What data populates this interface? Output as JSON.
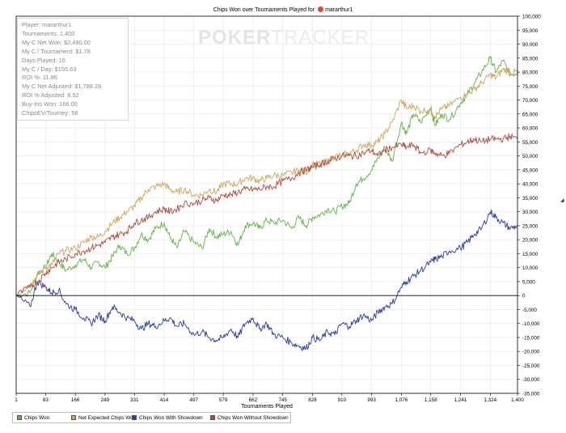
{
  "title": {
    "prefix": "Chips Won over Tournaments Played for",
    "player": "mararthur1"
  },
  "watermark": {
    "left": "POKER",
    "right": "TRACKER"
  },
  "stats": [
    "Player: mararthur1",
    "Tournaments: 1,400",
    "My C Net Won: $2,490.00",
    "My C / Tournament: $1.78",
    "Days Played: 16",
    "My C / Day: $155.63",
    "ROI %: 11.86",
    "My C Net Adjusted: $1,788.26",
    "ROI % Adjusted: 8.52",
    "Buy-Ins Won: 166.00",
    "ChipsEV/Tourney: 58"
  ],
  "colors": {
    "chips_won": "#5fb548",
    "net_expected": "#cda65c",
    "with_showdown": "#2a3aa8",
    "without_showdown": "#b04a3c",
    "grid": "#e6e6e6",
    "axis": "#000000"
  },
  "chart_data": {
    "type": "line",
    "title": "Chips Won over Tournaments Played for mararthur1",
    "xlabel": "Tournaments Played",
    "ylabel": "",
    "xlim": [
      1,
      1400
    ],
    "ylim": [
      -35000,
      100000
    ],
    "y_axis_side": "right",
    "grid": true,
    "legend_position": "bottom-left",
    "x_ticks": [
      1,
      83,
      166,
      249,
      331,
      414,
      497,
      579,
      662,
      745,
      828,
      910,
      993,
      1076,
      1158,
      1241,
      1324,
      1400
    ],
    "x_tick_labels": [
      "1",
      "83",
      "166",
      "249",
      "331",
      "414",
      "497",
      "579",
      "662",
      "745",
      "828",
      "910",
      "993",
      "1,076",
      "1,158",
      "1,241",
      "1,324",
      "1,400"
    ],
    "y_ticks": [
      -35000,
      -30000,
      -25000,
      -20000,
      -15000,
      -10000,
      -5000,
      0,
      5000,
      10000,
      15000,
      20000,
      25000,
      30000,
      35000,
      40000,
      45000,
      50000,
      55000,
      60000,
      65000,
      70000,
      75000,
      80000,
      85000,
      90000,
      95000,
      100000
    ],
    "y_tick_labels": [
      "-35,000",
      "-30,000",
      "-25,000",
      "-20,000",
      "-15,000",
      "-10,000",
      "-5,000",
      "0",
      "5,000",
      "10,000",
      "15,000",
      "20,000",
      "25,000",
      "30,000",
      "35,000",
      "40,000",
      "45,000",
      "50,000",
      "55,000",
      "60,000",
      "65,000",
      "70,000",
      "75,000",
      "80,000",
      "85,000",
      "90,000",
      "95,000",
      "100,000"
    ],
    "series": [
      {
        "name": "Chips Won",
        "color_key": "chips_won",
        "x": [
          1,
          40,
          60,
          83,
          100,
          120,
          140,
          166,
          190,
          210,
          230,
          249,
          270,
          290,
          310,
          331,
          350,
          370,
          390,
          414,
          430,
          450,
          470,
          497,
          520,
          540,
          560,
          579,
          600,
          620,
          640,
          662,
          680,
          700,
          720,
          745,
          770,
          790,
          810,
          828,
          850,
          870,
          890,
          910,
          930,
          950,
          970,
          993,
          1010,
          1030,
          1050,
          1076,
          1090,
          1110,
          1130,
          1158,
          1170,
          1190,
          1210,
          1241,
          1260,
          1280,
          1300,
          1324,
          1340,
          1360,
          1380,
          1400
        ],
        "y": [
          0,
          1000,
          8000,
          10000,
          15000,
          12000,
          9000,
          11000,
          13000,
          10000,
          12000,
          10000,
          14000,
          18000,
          15000,
          17000,
          22000,
          20000,
          24000,
          26000,
          21000,
          17000,
          23000,
          19000,
          17000,
          24000,
          21000,
          22000,
          23000,
          18000,
          25000,
          26000,
          24000,
          27000,
          26000,
          27000,
          24000,
          28000,
          25000,
          28000,
          29000,
          31000,
          30000,
          32000,
          33000,
          40000,
          42000,
          45000,
          49000,
          53000,
          48000,
          62000,
          58000,
          65000,
          62000,
          67000,
          61000,
          65000,
          63000,
          69000,
          72000,
          76000,
          80000,
          85000,
          80000,
          84000,
          79000,
          80000
        ]
      },
      {
        "name": "Net Expected Chips Won",
        "color_key": "net_expected",
        "x": [
          1,
          40,
          60,
          83,
          100,
          120,
          140,
          166,
          190,
          210,
          230,
          249,
          270,
          290,
          310,
          331,
          350,
          370,
          390,
          414,
          430,
          450,
          470,
          497,
          520,
          540,
          560,
          579,
          600,
          620,
          640,
          662,
          680,
          700,
          720,
          745,
          770,
          790,
          810,
          828,
          850,
          870,
          890,
          910,
          930,
          950,
          970,
          993,
          1010,
          1030,
          1050,
          1076,
          1090,
          1110,
          1130,
          1158,
          1170,
          1190,
          1210,
          1241,
          1260,
          1280,
          1300,
          1324,
          1340,
          1360,
          1380,
          1400
        ],
        "y": [
          0,
          4000,
          7000,
          10000,
          11000,
          15000,
          16000,
          17000,
          19000,
          21000,
          21000,
          23000,
          26000,
          28000,
          30000,
          32000,
          35000,
          38000,
          39000,
          40000,
          38000,
          37000,
          38000,
          36000,
          36000,
          38000,
          37000,
          40000,
          40000,
          40000,
          42000,
          42000,
          41000,
          42000,
          43000,
          43000,
          44000,
          45000,
          44000,
          47000,
          47000,
          48000,
          50000,
          50000,
          51000,
          52000,
          54000,
          54000,
          55000,
          58000,
          62000,
          70000,
          67000,
          68000,
          66000,
          67000,
          64000,
          67000,
          68000,
          71000,
          72000,
          74000,
          76000,
          79000,
          78000,
          81000,
          80000,
          80000
        ]
      },
      {
        "name": "Chips Won With Showdown",
        "color_key": "with_showdown",
        "x": [
          1,
          40,
          60,
          83,
          100,
          120,
          140,
          166,
          190,
          210,
          230,
          249,
          270,
          290,
          310,
          331,
          350,
          370,
          390,
          414,
          430,
          450,
          470,
          497,
          520,
          540,
          560,
          579,
          600,
          620,
          640,
          662,
          680,
          700,
          720,
          745,
          770,
          790,
          810,
          828,
          850,
          870,
          890,
          910,
          930,
          950,
          970,
          993,
          1010,
          1030,
          1050,
          1076,
          1090,
          1110,
          1130,
          1158,
          1170,
          1190,
          1210,
          1241,
          1260,
          1280,
          1300,
          1324,
          1340,
          1360,
          1380,
          1400
        ],
        "y": [
          0,
          -4000,
          5000,
          3000,
          1000,
          2000,
          -3000,
          -5000,
          -8000,
          -10000,
          -7000,
          -9000,
          -4000,
          -6000,
          -8000,
          -9000,
          -12000,
          -10000,
          -11000,
          -9000,
          -8000,
          -11000,
          -10000,
          -14000,
          -13000,
          -15000,
          -16000,
          -15000,
          -12000,
          -15000,
          -10000,
          -8000,
          -12000,
          -10000,
          -14000,
          -15000,
          -17000,
          -18000,
          -19000,
          -15000,
          -16000,
          -13000,
          -14000,
          -10000,
          -11000,
          -9000,
          -7000,
          -9000,
          -6000,
          -4000,
          -3000,
          3000,
          5000,
          7000,
          9000,
          12000,
          13000,
          14000,
          16000,
          17000,
          19000,
          22000,
          24000,
          30000,
          28000,
          26000,
          24000,
          25000
        ]
      },
      {
        "name": "Chips Won Without Showdown",
        "color_key": "without_showdown",
        "x": [
          1,
          40,
          60,
          83,
          100,
          120,
          140,
          166,
          190,
          210,
          230,
          249,
          270,
          290,
          310,
          331,
          350,
          370,
          390,
          414,
          430,
          450,
          470,
          497,
          520,
          540,
          560,
          579,
          600,
          620,
          640,
          662,
          680,
          700,
          720,
          745,
          770,
          790,
          810,
          828,
          850,
          870,
          890,
          910,
          930,
          950,
          970,
          993,
          1010,
          1030,
          1050,
          1076,
          1090,
          1110,
          1130,
          1158,
          1170,
          1190,
          1210,
          1241,
          1260,
          1280,
          1300,
          1324,
          1340,
          1360,
          1380,
          1400
        ],
        "y": [
          0,
          3000,
          5000,
          8000,
          10000,
          12000,
          13000,
          15000,
          16000,
          17000,
          18000,
          19000,
          21000,
          22000,
          23000,
          26000,
          27000,
          28000,
          30000,
          31000,
          30000,
          31000,
          33000,
          33000,
          34000,
          35000,
          34000,
          36000,
          36000,
          37000,
          38000,
          38000,
          38000,
          39000,
          39000,
          41000,
          42000,
          44000,
          45000,
          46000,
          47000,
          48000,
          49000,
          50000,
          50000,
          50000,
          51000,
          52000,
          50000,
          52000,
          53000,
          54000,
          53000,
          54000,
          51000,
          52000,
          51000,
          50000,
          51000,
          54000,
          55000,
          56000,
          55000,
          56000,
          56000,
          56000,
          57000,
          56000
        ]
      }
    ]
  },
  "legend": [
    {
      "label": "Chips Won",
      "color_key": "chips_won"
    },
    {
      "label": "Net Expected Chips Won",
      "color_key": "net_expected"
    },
    {
      "label": "Chips Won With Showdown",
      "color_key": "with_showdown"
    },
    {
      "label": "Chips Won Without Showdown",
      "color_key": "without_showdown"
    }
  ]
}
